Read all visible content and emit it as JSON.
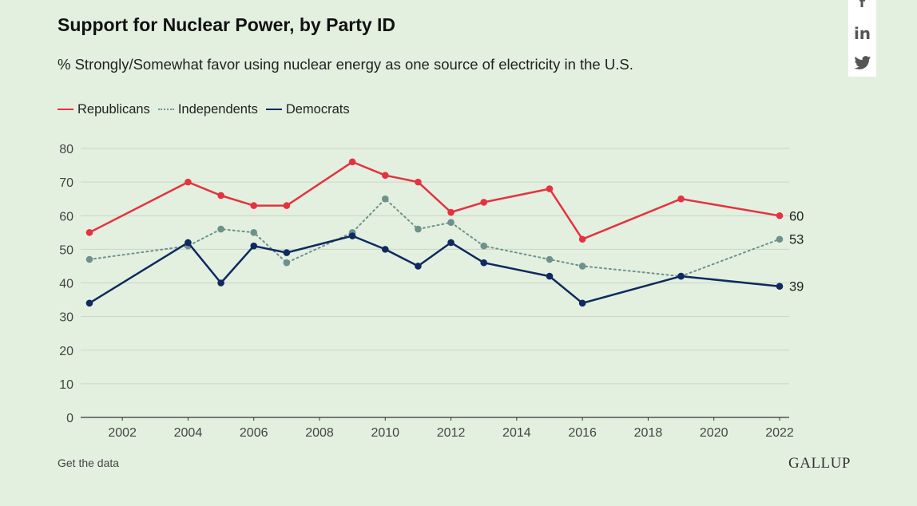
{
  "header": {
    "title": "Support for Nuclear Power, by Party ID",
    "subtitle": "% Strongly/Somewhat favor using nuclear energy as one source of electricity in the U.S."
  },
  "share": {
    "icons": [
      "facebook-icon",
      "linkedin-icon",
      "twitter-icon"
    ],
    "facebook_glyph": "f",
    "linkedin_glyph": "in",
    "twitter_glyph": "🐦"
  },
  "footer": {
    "get_data_label": "Get the data",
    "brand": "GALLUP"
  },
  "colors": {
    "background": "#e3f0e0",
    "republicans": "#e5323f",
    "independents": "#6e918b",
    "democrats": "#0e2a5e",
    "grid": "#c9d6c6",
    "axis": "#333333"
  },
  "chart_data": {
    "type": "line",
    "title": "Support for Nuclear Power, by Party ID",
    "subtitle": "% Strongly/Somewhat favor using nuclear energy as one source of electricity in the U.S.",
    "xlabel": "",
    "ylabel": "",
    "ylim": [
      0,
      80
    ],
    "xlim": [
      2001,
      2022
    ],
    "x_ticks": [
      2002,
      2004,
      2006,
      2008,
      2010,
      2012,
      2014,
      2016,
      2018,
      2020,
      2022
    ],
    "y_ticks": [
      0,
      10,
      20,
      30,
      40,
      50,
      60,
      70,
      80
    ],
    "grid": true,
    "legend_position": "top-left",
    "series": [
      {
        "name": "Republicans",
        "style": "solid",
        "color": "#e5323f",
        "x": [
          2001,
          2004,
          2005,
          2006,
          2007,
          2009,
          2010,
          2011,
          2012,
          2013,
          2015,
          2016,
          2019,
          2022
        ],
        "values": [
          55,
          70,
          66,
          63,
          63,
          76,
          72,
          70,
          61,
          64,
          68,
          53,
          65,
          60
        ],
        "end_label": "60"
      },
      {
        "name": "Independents",
        "style": "dotted",
        "color": "#6e918b",
        "x": [
          2001,
          2004,
          2005,
          2006,
          2007,
          2009,
          2010,
          2011,
          2012,
          2013,
          2015,
          2016,
          2019,
          2022
        ],
        "values": [
          47,
          51,
          56,
          55,
          46,
          55,
          65,
          56,
          58,
          51,
          47,
          45,
          42,
          53
        ],
        "end_label": "53"
      },
      {
        "name": "Democrats",
        "style": "solid",
        "color": "#0e2a5e",
        "x": [
          2001,
          2004,
          2005,
          2006,
          2007,
          2009,
          2010,
          2011,
          2012,
          2013,
          2015,
          2016,
          2019,
          2022
        ],
        "values": [
          34,
          52,
          40,
          51,
          49,
          54,
          50,
          45,
          52,
          46,
          42,
          34,
          42,
          39
        ],
        "end_label": "39"
      }
    ]
  }
}
